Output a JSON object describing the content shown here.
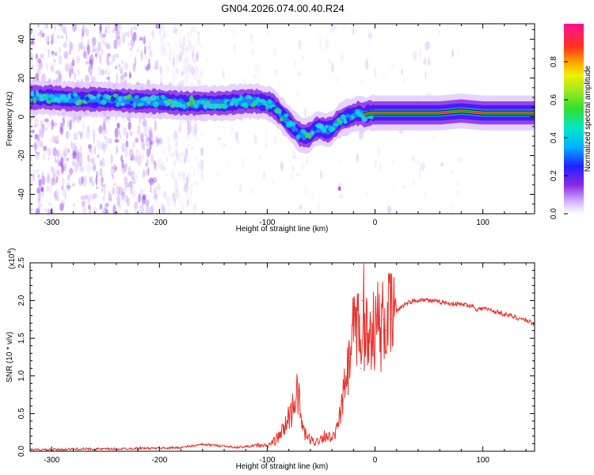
{
  "title": "GN04.2026.074.00.40.R24",
  "colors": {
    "snr_line": "#e8302a",
    "axis": "#000000",
    "ridge_core": "#e8303a",
    "ridge_glow": "#00e0c8",
    "scatter": "#8a2be2"
  },
  "chart_data": [
    {
      "type": "heatmap",
      "title": "",
      "xlabel": "Height of straight line (km)",
      "ylabel": "Frequency (Hz)",
      "xlim": [
        -320,
        148
      ],
      "ylim": [
        -50,
        48
      ],
      "xticks": [
        -300,
        -200,
        -100,
        0,
        100
      ],
      "xtick_labels": [
        "-300",
        "-200",
        "-100",
        "0",
        "100"
      ],
      "yticks": [
        -40,
        -20,
        0,
        20,
        40
      ],
      "ytick_labels": [
        "-40",
        "-20",
        "0",
        "20",
        "40"
      ],
      "ridge": {
        "x": [
          -320,
          -300,
          -280,
          -250,
          -220,
          -200,
          -180,
          -160,
          -140,
          -120,
          -110,
          -100,
          -95,
          -90,
          -85,
          -80,
          -75,
          -70,
          -65,
          -60,
          -55,
          -50,
          -45,
          -40,
          -35,
          -30,
          -25,
          -20,
          -15,
          -10,
          -5,
          0,
          10,
          20,
          40,
          60,
          80,
          100,
          120,
          148
        ],
        "y": [
          10,
          10,
          9,
          9,
          8,
          8,
          7,
          7,
          7,
          8,
          8,
          7,
          6,
          3,
          0,
          -3,
          -6,
          -9,
          -10,
          -9,
          -6,
          -6,
          -7,
          -6,
          -3,
          -1,
          0,
          1,
          2,
          1,
          2,
          2,
          2,
          2,
          2,
          2,
          3,
          2,
          2,
          2
        ]
      },
      "colorbar": {
        "label": "Normalized spectral amplitude",
        "range": [
          0.0,
          1.0
        ],
        "ticks": [
          0.0,
          0.2,
          0.4,
          0.6,
          0.8
        ],
        "tick_labels": [
          "0.0",
          "0.2",
          "0.4",
          "0.6",
          "0.8"
        ]
      }
    },
    {
      "type": "line",
      "title": "",
      "xlabel": "Height of straight line (km)",
      "ylabel": "SNR (10 * v/v)",
      "multiplier": "(x10",
      "multiplier_exp": "4",
      "xlim": [
        -320,
        148
      ],
      "ylim": [
        0,
        2.5
      ],
      "xticks": [
        -300,
        -200,
        -100,
        0,
        100
      ],
      "xtick_labels": [
        "-300",
        "-200",
        "-100",
        "0",
        "100"
      ],
      "yticks": [
        0.0,
        0.5,
        1.0,
        1.5,
        2.0,
        2.5
      ],
      "ytick_labels": [
        "0.0",
        "0.5",
        "1.0",
        "1.5",
        "2.0",
        "2.5"
      ],
      "series": [
        {
          "name": "SNR",
          "x": [
            -320,
            -300,
            -280,
            -260,
            -240,
            -220,
            -200,
            -180,
            -170,
            -160,
            -150,
            -140,
            -130,
            -120,
            -110,
            -100,
            -95,
            -90,
            -85,
            -80,
            -75,
            -72,
            -70,
            -68,
            -65,
            -60,
            -55,
            -50,
            -45,
            -40,
            -35,
            -30,
            -28,
            -25,
            -22,
            -20,
            -18,
            -15,
            -13,
            -12,
            -11,
            -10,
            -8,
            -5,
            -2,
            0,
            2,
            5,
            8,
            10,
            12,
            15,
            18,
            20,
            25,
            30,
            35,
            40,
            45,
            50,
            60,
            70,
            80,
            90,
            95,
            100,
            110,
            120,
            130,
            140,
            148
          ],
          "values": [
            0.02,
            0.02,
            0.03,
            0.03,
            0.03,
            0.04,
            0.04,
            0.05,
            0.07,
            0.09,
            0.08,
            0.07,
            0.05,
            0.06,
            0.08,
            0.07,
            0.12,
            0.18,
            0.28,
            0.45,
            0.62,
            0.95,
            0.55,
            0.38,
            0.22,
            0.15,
            0.12,
            0.18,
            0.22,
            0.15,
            0.3,
            0.65,
            0.9,
            1.05,
            1.3,
            1.65,
            1.45,
            1.75,
            1.1,
            2.0,
            2.5,
            1.35,
            1.55,
            1.45,
            1.85,
            1.5,
            1.8,
            1.55,
            1.75,
            1.6,
            1.85,
            1.75,
            1.9,
            1.85,
            1.93,
            1.97,
            1.99,
            2.0,
            2.02,
            2.0,
            1.98,
            1.96,
            1.95,
            1.93,
            1.88,
            1.9,
            1.86,
            1.82,
            1.78,
            1.74,
            1.69
          ]
        }
      ]
    }
  ]
}
